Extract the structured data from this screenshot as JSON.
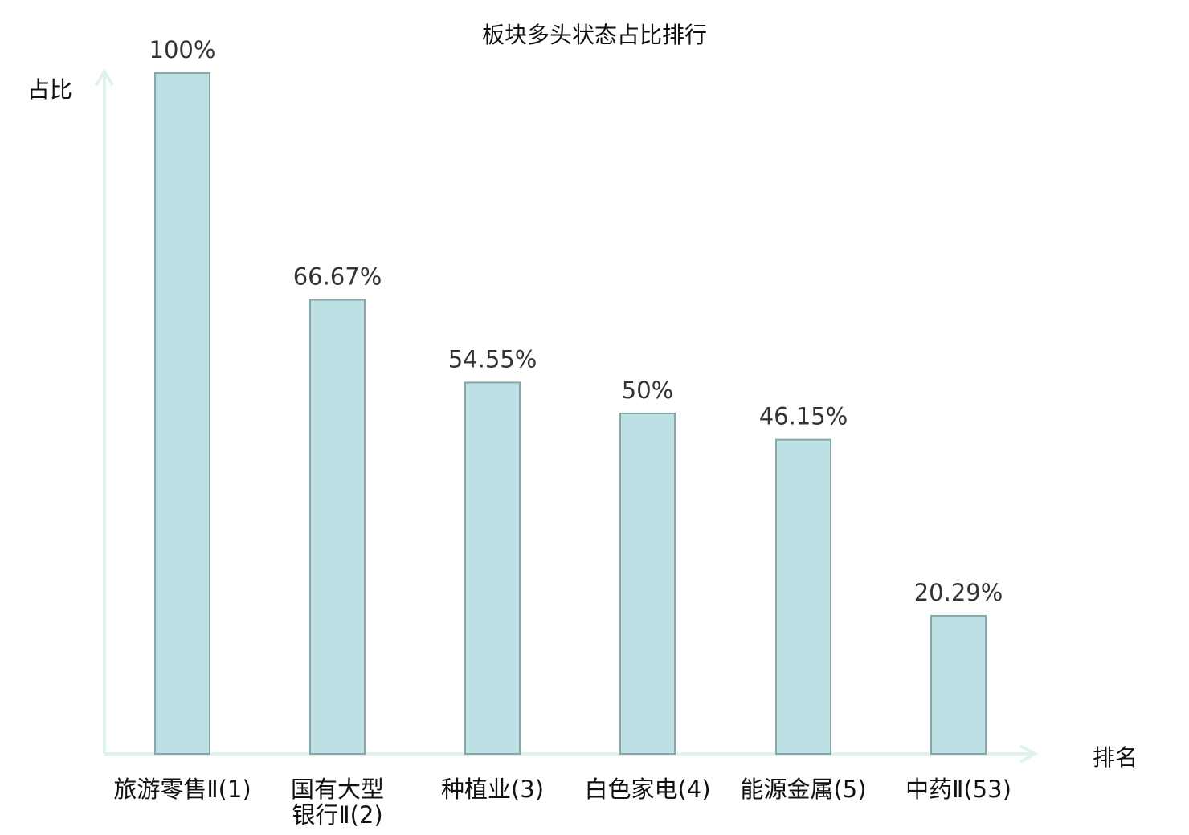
{
  "chart_data": {
    "type": "bar",
    "title": "板块多头状态占比排行",
    "xlabel": "排名",
    "ylabel": "占比",
    "categories": [
      "旅游零售Ⅱ(1)",
      "国有大型银行Ⅱ(2)",
      "种植业(3)",
      "白色家电(4)",
      "能源金属(5)",
      "中药Ⅱ(53)"
    ],
    "values": [
      100,
      66.67,
      54.55,
      50,
      46.15,
      20.29
    ],
    "value_labels": [
      "100%",
      "66.67%",
      "54.55%",
      "50%",
      "46.15%",
      "20.29%"
    ],
    "ylim": [
      0,
      100
    ],
    "grid": false,
    "highlight_index": 5,
    "colors": {
      "bar": "#bce0e3",
      "bar_edge": "#87a8aa",
      "axis": "#dff2f0",
      "highlight": "#ee1111",
      "text": "#111111"
    }
  }
}
